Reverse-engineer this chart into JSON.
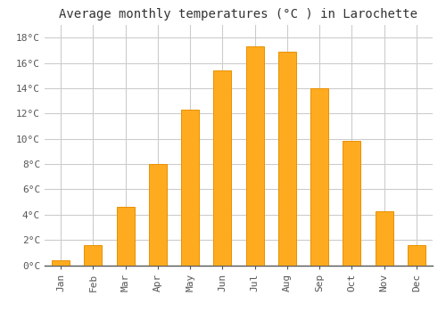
{
  "title": "Average monthly temperatures (°C ) in Larochette",
  "months": [
    "Jan",
    "Feb",
    "Mar",
    "Apr",
    "May",
    "Jun",
    "Jul",
    "Aug",
    "Sep",
    "Oct",
    "Nov",
    "Dec"
  ],
  "values": [
    0.4,
    1.6,
    4.6,
    8.0,
    12.3,
    15.4,
    17.3,
    16.9,
    14.0,
    9.8,
    4.3,
    1.6
  ],
  "bar_color": "#FFAB20",
  "bar_edge_color": "#E89000",
  "ylim": [
    0,
    19
  ],
  "yticks": [
    0,
    2,
    4,
    6,
    8,
    10,
    12,
    14,
    16,
    18
  ],
  "ytick_labels": [
    "0°C",
    "2°C",
    "4°C",
    "6°C",
    "8°C",
    "10°C",
    "12°C",
    "14°C",
    "16°C",
    "18°C"
  ],
  "background_color": "#ffffff",
  "grid_color": "#cccccc",
  "title_fontsize": 10,
  "tick_fontsize": 8,
  "font_family": "monospace",
  "bar_width": 0.55
}
